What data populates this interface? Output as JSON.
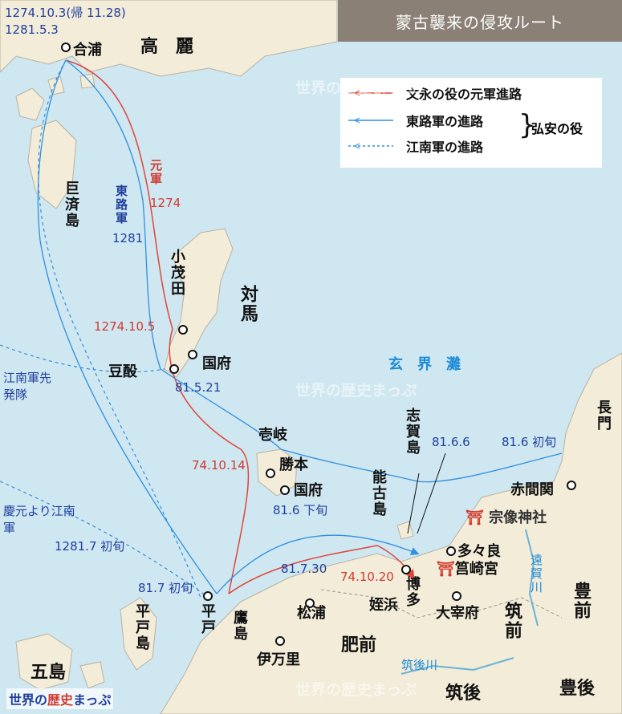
{
  "title": "蒙古襲来の侵攻ルート",
  "legend": {
    "items": [
      {
        "label": "文永の役の元軍進路",
        "color": "#e0453a",
        "style": "solid"
      },
      {
        "label": "東路軍の進路",
        "color": "#2f8fe0",
        "style": "solid"
      },
      {
        "label": "江南軍の進路",
        "color": "#2f8fe0",
        "style": "dashed"
      }
    ],
    "group_label": "弘安の役"
  },
  "places": {
    "gappo": "合浦",
    "korea": "高　麗",
    "geoje": "巨済島",
    "tsushima": "対馬",
    "komoda": "小茂田",
    "tsushima_kokufu": "国府",
    "tosaki": "豆酘",
    "genkainada": "玄　界　灘",
    "iki": "壱岐",
    "katsumoto": "勝本",
    "iki_kokufu": "国府",
    "shikanoshima": "志賀島",
    "nokonoshima": "能古島",
    "nagato": "長門",
    "akamagaseki": "赤間関",
    "munakata": "宗像神社",
    "tatara": "多々良",
    "hakozaki": "筥崎宮",
    "hakata": "博多",
    "dazaifu": "大宰府",
    "chikuzen": "筑前",
    "buzen": "豊前",
    "onga": "遠賀川",
    "hirado": "平戸",
    "hirado_shima": "平戸島",
    "takashima": "鷹島",
    "matsuura": "松浦",
    "imari": "伊万里",
    "meinohama": "姪浜",
    "hizen": "肥前",
    "goto": "五島",
    "chikugo_river": "筑後川",
    "chikugo": "筑後",
    "bungo": "豊後",
    "konan_advance": "江南軍先発隊",
    "konan_main": "慶元より江南軍"
  },
  "annotations": {
    "dates_top_1": "1274.10.3(帰 11.28)",
    "dates_top_2": "1281.5.3",
    "yuan_army": "元軍",
    "yuan_year": "1274",
    "east_army": "東路軍",
    "east_year": "1281",
    "komoda_date": "1274.10.5",
    "tosaki_date": "81.5.21",
    "katsumoto_date": "74.10.14",
    "shika_date": "81.6.6",
    "nagato_date": "81.6 初旬",
    "iki_date": "81.6 下旬",
    "konan_date": "1281.7 初旬",
    "hirado_date": "81.7 初旬",
    "takashima_date": "81.7.30",
    "hakata_date": "74.10.20"
  },
  "watermark": "世界の歴史まっぷ",
  "logo": {
    "part1": "世界の",
    "part2": "歴史",
    "part3": "まっぷ"
  },
  "colors": {
    "sea": "#cfe7f0",
    "land": "#f2ecd9",
    "red": "#e0453a",
    "blue": "#2f8fe0",
    "title_bg": "#8a8076"
  }
}
